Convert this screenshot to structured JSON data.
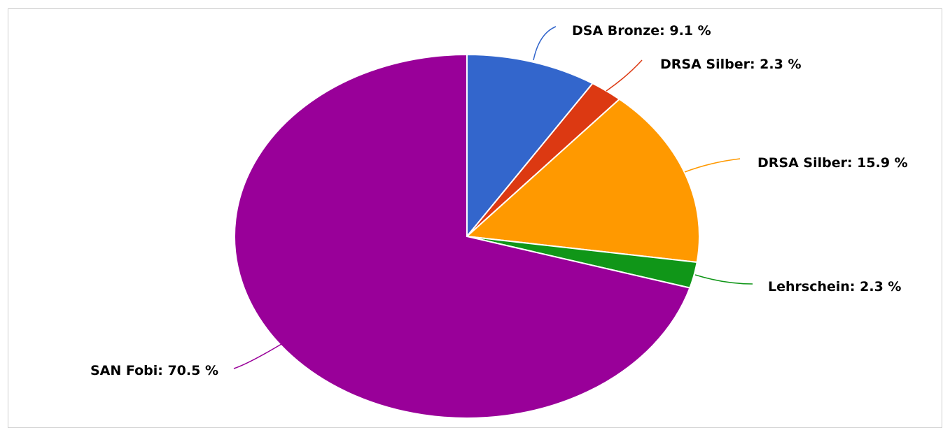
{
  "chart_data": {
    "type": "pie",
    "slices": [
      {
        "label": "DSA Bronze: 9.1 %",
        "value": 9.1,
        "color": "#3366cc"
      },
      {
        "label": "DRSA Silber: 2.3 %",
        "value": 2.3,
        "color": "#dc3912"
      },
      {
        "label": "DRSA Silber: 15.9 %",
        "value": 15.9,
        "color": "#ff9900"
      },
      {
        "label": "Lehrschein: 2.3 %",
        "value": 2.3,
        "color": "#109618"
      },
      {
        "label": "SAN Fobi: 70.5 %",
        "value": 70.5,
        "color": "#990099"
      }
    ]
  }
}
